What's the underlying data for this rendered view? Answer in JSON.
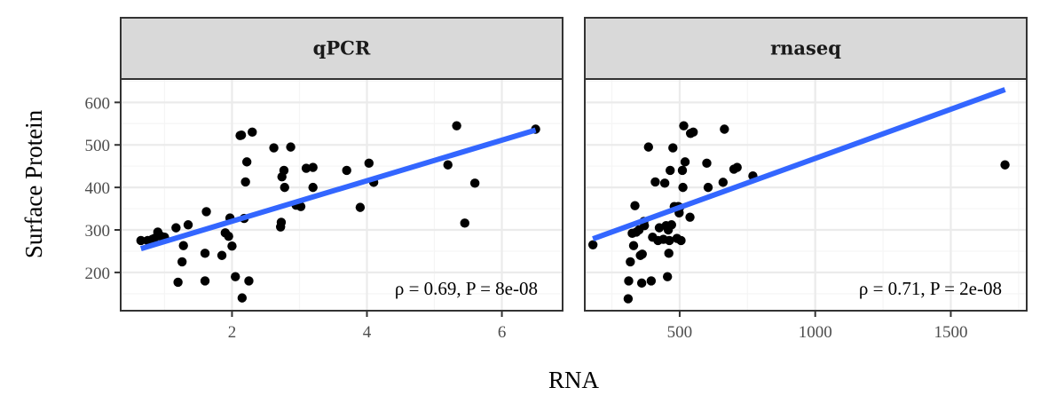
{
  "chart_data": {
    "type": "scatter",
    "ylabel": "Surface Protein",
    "xlabel": "RNA",
    "grid": true,
    "colors": {
      "point": "#000000",
      "fit_line": "#3366FF",
      "strip_fill": "#D9D9D9",
      "panel_border": "#333333",
      "grid_major": "#EBEBEB",
      "grid_minor": "#F5F5F5"
    },
    "y_range": [
      110,
      655
    ],
    "y_ticks": [
      200,
      300,
      400,
      500,
      600
    ],
    "panels": [
      {
        "title": "qPCR",
        "x_range": [
          0.35,
          6.9
        ],
        "x_ticks": [
          2,
          4,
          6
        ],
        "annotation": "ρ = 0.69,  P = 8e-08",
        "fit": {
          "x": [
            0.65,
            6.5
          ],
          "y": [
            256,
            535
          ]
        },
        "points": [
          [
            0.65,
            275
          ],
          [
            0.75,
            275
          ],
          [
            0.82,
            278
          ],
          [
            0.9,
            295
          ],
          [
            0.95,
            285
          ],
          [
            1.0,
            283
          ],
          [
            0.85,
            280
          ],
          [
            1.17,
            305
          ],
          [
            1.35,
            312
          ],
          [
            1.28,
            263
          ],
          [
            1.26,
            225
          ],
          [
            1.2,
            177
          ],
          [
            1.6,
            180
          ],
          [
            1.6,
            245
          ],
          [
            1.62,
            343
          ],
          [
            1.85,
            240
          ],
          [
            1.9,
            293
          ],
          [
            1.95,
            285
          ],
          [
            1.97,
            328
          ],
          [
            2.0,
            262
          ],
          [
            2.05,
            190
          ],
          [
            2.12,
            522
          ],
          [
            2.14,
            523
          ],
          [
            2.15,
            140
          ],
          [
            2.18,
            327
          ],
          [
            2.2,
            413
          ],
          [
            2.22,
            460
          ],
          [
            2.25,
            180
          ],
          [
            2.3,
            530
          ],
          [
            2.62,
            493
          ],
          [
            2.72,
            307
          ],
          [
            2.73,
            318
          ],
          [
            2.74,
            425
          ],
          [
            2.77,
            440
          ],
          [
            2.78,
            400
          ],
          [
            2.87,
            495
          ],
          [
            2.95,
            358
          ],
          [
            3.02,
            355
          ],
          [
            3.1,
            445
          ],
          [
            3.2,
            447
          ],
          [
            3.2,
            400
          ],
          [
            3.7,
            440
          ],
          [
            3.9,
            353
          ],
          [
            4.03,
            457
          ],
          [
            4.1,
            412
          ],
          [
            5.2,
            453
          ],
          [
            5.33,
            545
          ],
          [
            5.45,
            316
          ],
          [
            5.6,
            410
          ],
          [
            6.5,
            537
          ]
        ]
      },
      {
        "title": "rnaseq",
        "x_range": [
          150,
          1780
        ],
        "x_ticks": [
          500,
          1000,
          1500
        ],
        "annotation": "ρ = 0.71,  P = 2e-08",
        "fit": {
          "x": [
            180,
            1700
          ],
          "y": [
            279,
            630
          ]
        },
        "points": [
          [
            180,
            265
          ],
          [
            310,
            138
          ],
          [
            312,
            180
          ],
          [
            318,
            225
          ],
          [
            325,
            292
          ],
          [
            330,
            263
          ],
          [
            335,
            357
          ],
          [
            340,
            295
          ],
          [
            350,
            300
          ],
          [
            355,
            240
          ],
          [
            360,
            175
          ],
          [
            362,
            243
          ],
          [
            368,
            320
          ],
          [
            370,
            310
          ],
          [
            385,
            495
          ],
          [
            395,
            180
          ],
          [
            400,
            283
          ],
          [
            410,
            413
          ],
          [
            420,
            275
          ],
          [
            425,
            305
          ],
          [
            440,
            278
          ],
          [
            445,
            410
          ],
          [
            450,
            310
          ],
          [
            455,
            190
          ],
          [
            458,
            300
          ],
          [
            460,
            245
          ],
          [
            462,
            275
          ],
          [
            465,
            440
          ],
          [
            470,
            312
          ],
          [
            475,
            493
          ],
          [
            480,
            355
          ],
          [
            490,
            280
          ],
          [
            495,
            355
          ],
          [
            498,
            340
          ],
          [
            500,
            353
          ],
          [
            505,
            275
          ],
          [
            510,
            440
          ],
          [
            512,
            400
          ],
          [
            515,
            545
          ],
          [
            520,
            460
          ],
          [
            538,
            330
          ],
          [
            540,
            527
          ],
          [
            550,
            530
          ],
          [
            600,
            457
          ],
          [
            605,
            400
          ],
          [
            660,
            412
          ],
          [
            665,
            537
          ],
          [
            700,
            443
          ],
          [
            712,
            447
          ],
          [
            770,
            427
          ],
          [
            1700,
            453
          ]
        ]
      }
    ]
  }
}
